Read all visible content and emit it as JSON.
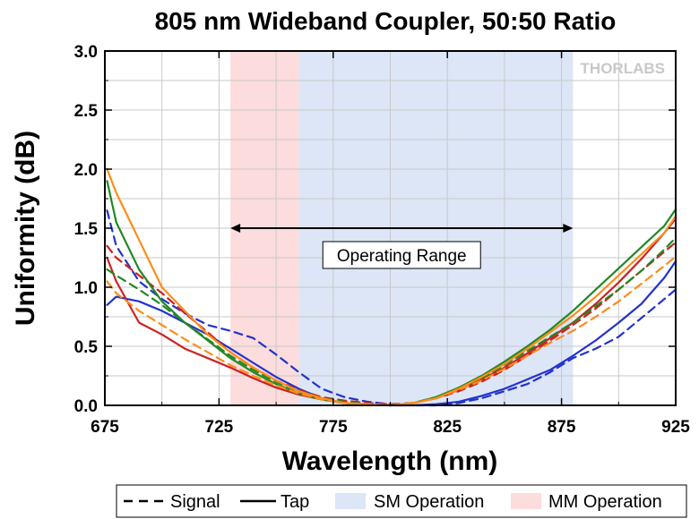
{
  "chart_data": {
    "type": "line",
    "title": "805 nm Wideband Coupler, 50:50 Ratio",
    "xlabel": "Wavelength (nm)",
    "ylabel": "Uniformity (dB)",
    "xlim": [
      675,
      925
    ],
    "ylim": [
      0,
      3.0
    ],
    "x_ticks": [
      "675",
      "725",
      "775",
      "825",
      "875",
      "925"
    ],
    "y_ticks": [
      "0.0",
      "0.5",
      "1.0",
      "1.5",
      "2.0",
      "2.5",
      "3.0"
    ],
    "grid": true,
    "bands": [
      {
        "name": "MM Operation",
        "x_range": [
          730,
          760
        ],
        "color": "#fcdcdc"
      },
      {
        "name": "SM Operation",
        "x_range": [
          760,
          880
        ],
        "color": "#dce6f6"
      }
    ],
    "annotation": {
      "text": "Operating Range",
      "x_range": [
        730,
        880
      ],
      "y": 1.5
    },
    "logo": "THORLABS",
    "series": [
      {
        "name": "Signal",
        "color": "#2233cc",
        "style": "dashed",
        "x": [
          676,
          680,
          690,
          700,
          710,
          720,
          730,
          740,
          750,
          760,
          770,
          780,
          790,
          800,
          810,
          820,
          830,
          840,
          850,
          860,
          870,
          880,
          890,
          900,
          910,
          920,
          925
        ],
        "y": [
          1.65,
          1.35,
          1.05,
          0.9,
          0.78,
          0.68,
          0.63,
          0.57,
          0.43,
          0.28,
          0.14,
          0.07,
          0.03,
          0.01,
          0.0,
          0.0,
          0.02,
          0.06,
          0.12,
          0.18,
          0.28,
          0.4,
          0.48,
          0.58,
          0.74,
          0.9,
          0.98
        ]
      },
      {
        "name": "Tap",
        "color": "#2233cc",
        "style": "solid",
        "x": [
          676,
          680,
          690,
          700,
          710,
          720,
          730,
          740,
          750,
          760,
          770,
          780,
          790,
          800,
          810,
          820,
          830,
          840,
          850,
          860,
          870,
          880,
          890,
          900,
          910,
          920,
          925
        ],
        "y": [
          0.85,
          0.92,
          0.88,
          0.8,
          0.7,
          0.6,
          0.48,
          0.36,
          0.24,
          0.14,
          0.06,
          0.02,
          0.01,
          0.0,
          0.0,
          0.01,
          0.03,
          0.08,
          0.14,
          0.22,
          0.3,
          0.42,
          0.55,
          0.7,
          0.86,
          1.08,
          1.22
        ]
      },
      {
        "name": "Signal",
        "color": "#cc2222",
        "style": "dashed",
        "x": [
          676,
          680,
          690,
          700,
          710,
          720,
          730,
          740,
          750,
          760,
          770,
          780,
          790,
          800,
          810,
          820,
          830,
          840,
          850,
          860,
          870,
          880,
          890,
          900,
          910,
          920,
          925
        ],
        "y": [
          1.35,
          1.25,
          1.1,
          0.95,
          0.78,
          0.62,
          0.45,
          0.32,
          0.21,
          0.13,
          0.07,
          0.04,
          0.02,
          0.01,
          0.02,
          0.06,
          0.12,
          0.2,
          0.3,
          0.42,
          0.55,
          0.68,
          0.82,
          0.98,
          1.14,
          1.3,
          1.38
        ]
      },
      {
        "name": "Tap",
        "color": "#cc2222",
        "style": "solid",
        "x": [
          676,
          680,
          690,
          700,
          710,
          720,
          730,
          740,
          750,
          760,
          770,
          780,
          790,
          800,
          810,
          820,
          830,
          840,
          850,
          860,
          870,
          880,
          890,
          900,
          910,
          920,
          925
        ],
        "y": [
          1.25,
          1.05,
          0.7,
          0.6,
          0.48,
          0.4,
          0.32,
          0.23,
          0.15,
          0.09,
          0.05,
          0.02,
          0.01,
          0.0,
          0.02,
          0.06,
          0.13,
          0.22,
          0.32,
          0.44,
          0.57,
          0.7,
          0.86,
          1.04,
          1.24,
          1.46,
          1.58
        ]
      },
      {
        "name": "Signal",
        "color": "#228822",
        "style": "dashed",
        "x": [
          676,
          680,
          690,
          700,
          710,
          720,
          730,
          740,
          750,
          760,
          770,
          780,
          790,
          800,
          810,
          820,
          830,
          840,
          850,
          860,
          870,
          880,
          890,
          900,
          910,
          920,
          925
        ],
        "y": [
          1.15,
          1.1,
          0.98,
          0.85,
          0.7,
          0.56,
          0.42,
          0.3,
          0.2,
          0.12,
          0.06,
          0.03,
          0.01,
          0.0,
          0.02,
          0.07,
          0.14,
          0.23,
          0.34,
          0.46,
          0.58,
          0.7,
          0.84,
          0.98,
          1.14,
          1.32,
          1.42
        ]
      },
      {
        "name": "Tap",
        "color": "#228822",
        "style": "solid",
        "x": [
          676,
          680,
          690,
          700,
          710,
          720,
          730,
          740,
          750,
          760,
          770,
          780,
          790,
          800,
          810,
          820,
          830,
          840,
          850,
          860,
          870,
          880,
          890,
          900,
          910,
          920,
          925
        ],
        "y": [
          1.9,
          1.55,
          1.15,
          0.88,
          0.7,
          0.55,
          0.4,
          0.28,
          0.18,
          0.1,
          0.05,
          0.02,
          0.01,
          0.0,
          0.02,
          0.07,
          0.15,
          0.25,
          0.37,
          0.5,
          0.64,
          0.8,
          0.98,
          1.16,
          1.34,
          1.52,
          1.66
        ]
      },
      {
        "name": "Signal",
        "color": "#ff8c1a",
        "style": "dashed",
        "x": [
          676,
          680,
          690,
          700,
          710,
          720,
          730,
          740,
          750,
          760,
          770,
          780,
          790,
          800,
          810,
          820,
          830,
          840,
          850,
          860,
          870,
          880,
          890,
          900,
          910,
          920,
          925
        ],
        "y": [
          1.05,
          0.95,
          0.8,
          0.68,
          0.56,
          0.45,
          0.34,
          0.25,
          0.17,
          0.1,
          0.05,
          0.02,
          0.01,
          0.0,
          0.02,
          0.06,
          0.13,
          0.21,
          0.31,
          0.42,
          0.53,
          0.63,
          0.75,
          0.88,
          1.03,
          1.18,
          1.26
        ]
      },
      {
        "name": "Tap",
        "color": "#ff8c1a",
        "style": "solid",
        "x": [
          676,
          680,
          690,
          700,
          710,
          720,
          730,
          740,
          750,
          760,
          770,
          780,
          790,
          800,
          810,
          820,
          830,
          840,
          850,
          860,
          870,
          880,
          890,
          900,
          910,
          920,
          925
        ],
        "y": [
          2.0,
          1.8,
          1.4,
          1.0,
          0.8,
          0.6,
          0.45,
          0.32,
          0.21,
          0.12,
          0.06,
          0.02,
          0.01,
          0.0,
          0.02,
          0.06,
          0.14,
          0.24,
          0.35,
          0.48,
          0.62,
          0.76,
          0.92,
          1.1,
          1.28,
          1.46,
          1.6
        ]
      }
    ],
    "legend": {
      "placement": "bottom",
      "items": [
        {
          "label": "Signal",
          "kind": "dashed-line",
          "color": "#000000"
        },
        {
          "label": "Tap",
          "kind": "solid-line",
          "color": "#000000"
        },
        {
          "label": "SM Operation",
          "kind": "patch",
          "color": "#dce6f6"
        },
        {
          "label": "MM Operation",
          "kind": "patch",
          "color": "#fcdcdc"
        }
      ]
    }
  }
}
